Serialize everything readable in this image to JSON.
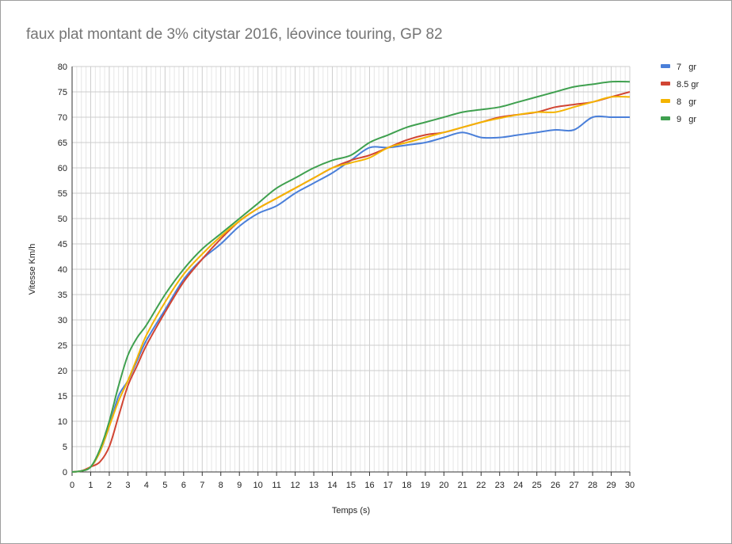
{
  "chart_data": {
    "type": "line",
    "title": "faux plat montant de 3% citystar 2016, léovince touring, GP 82",
    "xlabel": "Temps (s)",
    "ylabel": "Vitesse Km/h",
    "xlim": [
      0,
      30
    ],
    "ylim": [
      0,
      80
    ],
    "x_ticks": [
      "0",
      "1",
      "2",
      "3",
      "4",
      "5",
      "6",
      "7",
      "8",
      "9",
      "10",
      "11",
      "12",
      "13",
      "14",
      "15",
      "16",
      "17",
      "18",
      "19",
      "20",
      "21",
      "22",
      "23",
      "24",
      "25",
      "26",
      "27",
      "28",
      "29",
      "30"
    ],
    "y_ticks": [
      "0",
      "5",
      "10",
      "15",
      "20",
      "25",
      "30",
      "35",
      "40",
      "45",
      "50",
      "55",
      "60",
      "65",
      "70",
      "75",
      "80"
    ],
    "grid": true,
    "legend_position": "right",
    "x": [
      0,
      0.5,
      1,
      1.5,
      2,
      2.5,
      3,
      3.5,
      4,
      5,
      6,
      7,
      8,
      9,
      10,
      11,
      12,
      13,
      14,
      15,
      16,
      17,
      18,
      19,
      20,
      21,
      22,
      23,
      24,
      25,
      26,
      27,
      28,
      29,
      30
    ],
    "series": [
      {
        "name": "7   gr",
        "color": "#4a7fd9",
        "values": [
          0,
          0.2,
          1,
          4,
          9,
          15,
          18,
          22,
          26,
          32,
          38,
          42,
          45,
          48.5,
          51,
          52.5,
          55,
          57,
          59,
          61.5,
          64,
          64,
          64.5,
          65,
          66,
          67,
          66,
          66,
          66.5,
          67,
          67.5,
          67.5,
          70,
          70,
          70
        ]
      },
      {
        "name": "8.5 gr",
        "color": "#d14533",
        "values": [
          0,
          0.2,
          1,
          2,
          5,
          11,
          17,
          21,
          25,
          31.5,
          37.5,
          42,
          46,
          49.5,
          52,
          54,
          56,
          58,
          60,
          61.5,
          62.5,
          64,
          65.5,
          66.5,
          67,
          68,
          69,
          70,
          70.5,
          71,
          72,
          72.5,
          73,
          74,
          75
        ]
      },
      {
        "name": "8   gr",
        "color": "#f4b400",
        "values": [
          0,
          0.2,
          1,
          4,
          9,
          14,
          18,
          22.5,
          27,
          33.5,
          39,
          43,
          46.5,
          49.5,
          52,
          54,
          56,
          58,
          60,
          61,
          62,
          64,
          65,
          66,
          67,
          68,
          69,
          69.8,
          70.5,
          71,
          71,
          72,
          73,
          74,
          74
        ]
      },
      {
        "name": "9   gr",
        "color": "#3fa04f",
        "values": [
          0,
          0.2,
          1,
          4.5,
          10,
          17,
          23,
          26.5,
          29,
          35,
          40,
          44,
          47,
          50,
          53,
          56,
          58,
          60,
          61.5,
          62.5,
          65,
          66.5,
          68,
          69,
          70,
          71,
          71.5,
          72,
          73,
          74,
          75,
          76,
          76.5,
          77,
          77
        ]
      }
    ]
  }
}
